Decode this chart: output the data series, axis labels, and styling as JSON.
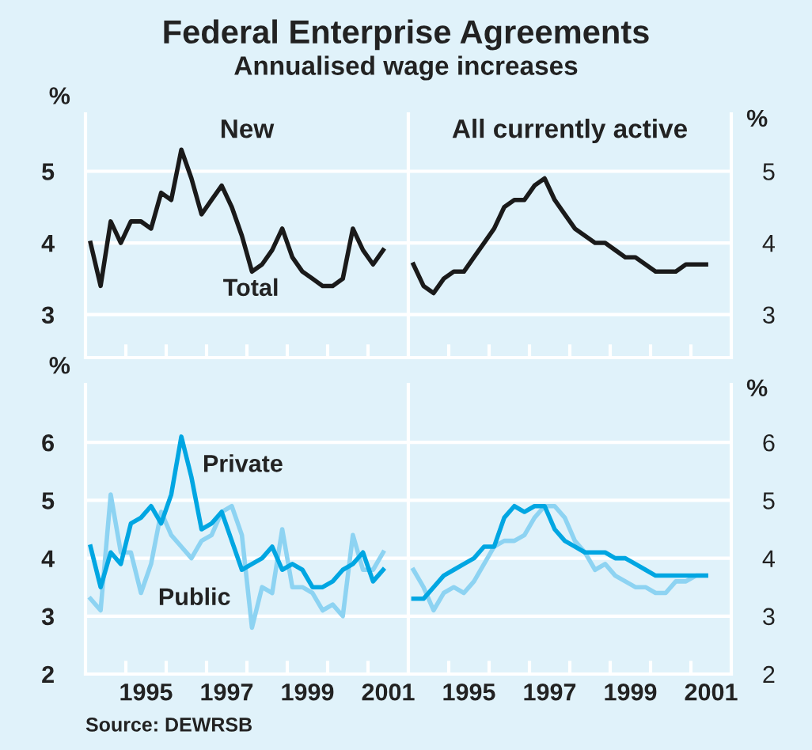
{
  "chart_data": [
    {
      "type": "line",
      "title": "Federal Enterprise Agreements",
      "subtitle": "Annualised wage increases",
      "annotations": [
        "New"
      ],
      "ylabel": "%",
      "grid": "y",
      "tick_labels": "y",
      "x": [
        1993.625,
        1993.875,
        1994.125,
        1994.375,
        1994.625,
        1994.875,
        1995.125,
        1995.375,
        1995.625,
        1995.875,
        1996.125,
        1996.375,
        1996.625,
        1996.875,
        1997.125,
        1997.375,
        1997.625,
        1997.875,
        1998.125,
        1998.375,
        1998.625,
        1998.875,
        1999.125,
        1999.375,
        1999.625,
        1999.875,
        2000.125,
        2000.375,
        2000.625,
        2000.875
      ],
      "xlim": [
        1993.5,
        2001.5
      ],
      "xticks": [
        {
          "value": 1994.5,
          "label": null
        },
        1995,
        {
          "value": 1995.5,
          "label": null
        },
        {
          "value": 1996.5,
          "label": null
        },
        1997,
        {
          "value": 1997.5,
          "label": null
        },
        {
          "value": 1998.5,
          "label": null
        },
        1999,
        {
          "value": 1999.5,
          "label": null
        },
        {
          "value": 2000.5,
          "label": null
        },
        2001
      ],
      "ylim": [
        2.4,
        5.8
      ],
      "yticks": [
        3,
        4,
        5
      ],
      "series": [
        {
          "name": "Total",
          "color": "#1a1a1a",
          "values": [
            4.0,
            3.4,
            4.3,
            4.0,
            4.3,
            4.3,
            4.2,
            4.7,
            4.6,
            5.3,
            4.9,
            4.4,
            4.6,
            4.8,
            4.5,
            4.1,
            3.6,
            3.7,
            3.9,
            4.2,
            3.8,
            3.6,
            3.5,
            3.4,
            3.4,
            3.5,
            4.2,
            3.9,
            3.7,
            3.9
          ]
        }
      ]
    },
    {
      "type": "line",
      "annotations": [
        "All currently active"
      ],
      "ylabel": "%",
      "grid": "y",
      "tick_labels": "y",
      "x": [
        1993.625,
        1993.875,
        1994.125,
        1994.375,
        1994.625,
        1994.875,
        1995.125,
        1995.375,
        1995.625,
        1995.875,
        1996.125,
        1996.375,
        1996.625,
        1996.875,
        1997.125,
        1997.375,
        1997.625,
        1997.875,
        1998.125,
        1998.375,
        1998.625,
        1998.875,
        1999.125,
        1999.375,
        1999.625,
        1999.875,
        2000.125,
        2000.375,
        2000.625,
        2000.875
      ],
      "xlim": [
        1993.5,
        2001.5
      ],
      "xticks": [
        {
          "value": 1994.5,
          "label": null
        },
        1995,
        {
          "value": 1995.5,
          "label": null
        },
        {
          "value": 1996.5,
          "label": null
        },
        1997,
        {
          "value": 1997.5,
          "label": null
        },
        {
          "value": 1998.5,
          "label": null
        },
        1999,
        {
          "value": 1999.5,
          "label": null
        },
        {
          "value": 2000.5,
          "label": null
        },
        2001
      ],
      "ylim": [
        2.4,
        5.8
      ],
      "yticks": [
        3,
        4,
        5
      ],
      "series": [
        {
          "color": "#1a1a1a",
          "values": [
            3.7,
            3.4,
            3.3,
            3.5,
            3.6,
            3.6,
            3.8,
            4.0,
            4.2,
            4.5,
            4.6,
            4.6,
            4.8,
            4.9,
            4.6,
            4.4,
            4.2,
            4.1,
            4.0,
            4.0,
            3.9,
            3.8,
            3.8,
            3.7,
            3.6,
            3.6,
            3.6,
            3.7,
            3.7,
            3.7
          ]
        }
      ]
    },
    {
      "type": "line",
      "annotations": [
        "Source: DEWRSB"
      ],
      "ylabel": "%",
      "grid": "y",
      "x": [
        1993.625,
        1993.875,
        1994.125,
        1994.375,
        1994.625,
        1994.875,
        1995.125,
        1995.375,
        1995.625,
        1995.875,
        1996.125,
        1996.375,
        1996.625,
        1996.875,
        1997.125,
        1997.375,
        1997.625,
        1997.875,
        1998.125,
        1998.375,
        1998.625,
        1998.875,
        1999.125,
        1999.375,
        1999.625,
        1999.875,
        2000.125,
        2000.375,
        2000.625,
        2000.875
      ],
      "xlim": [
        1993.5,
        2001.5
      ],
      "xticks": [
        {
          "value": 1994.5,
          "label": null
        },
        1995,
        {
          "value": 1995.5,
          "label": null
        },
        {
          "value": 1996.5,
          "label": null
        },
        1997,
        {
          "value": 1997.5,
          "label": null
        },
        {
          "value": 1998.5,
          "label": null
        },
        1999,
        {
          "value": 1999.5,
          "label": null
        },
        {
          "value": 2000.5,
          "label": null
        },
        2001
      ],
      "ylim": [
        2,
        7
      ],
      "yticks": [
        2,
        3,
        4,
        5,
        6
      ],
      "series": [
        {
          "name": "Public",
          "color": "#8dd3f2",
          "values": [
            3.3,
            3.1,
            5.1,
            4.1,
            4.1,
            3.4,
            3.9,
            4.8,
            4.4,
            4.2,
            4.0,
            4.3,
            4.4,
            4.8,
            4.9,
            4.4,
            2.8,
            3.5,
            3.4,
            4.5,
            3.5,
            3.5,
            3.4,
            3.1,
            3.2,
            3.0,
            4.4,
            3.8,
            3.8,
            4.1
          ]
        },
        {
          "name": "Private",
          "color": "#00a6e2",
          "values": [
            4.2,
            3.5,
            4.1,
            3.9,
            4.6,
            4.7,
            4.9,
            4.6,
            5.1,
            6.1,
            5.4,
            4.5,
            4.6,
            4.8,
            4.3,
            3.8,
            3.9,
            4.0,
            4.2,
            3.8,
            3.9,
            3.8,
            3.5,
            3.5,
            3.6,
            3.8,
            3.9,
            4.1,
            3.6,
            3.8
          ]
        }
      ]
    },
    {
      "type": "line",
      "ylabel": "%",
      "grid": "y",
      "x": [
        1993.625,
        1993.875,
        1994.125,
        1994.375,
        1994.625,
        1994.875,
        1995.125,
        1995.375,
        1995.625,
        1995.875,
        1996.125,
        1996.375,
        1996.625,
        1996.875,
        1997.125,
        1997.375,
        1997.625,
        1997.875,
        1998.125,
        1998.375,
        1998.625,
        1998.875,
        1999.125,
        1999.375,
        1999.625,
        1999.875,
        2000.125,
        2000.375,
        2000.625,
        2000.875
      ],
      "xlim": [
        1993.5,
        2001.5
      ],
      "xticks": [
        {
          "value": 1994.5,
          "label": null
        },
        1995,
        {
          "value": 1995.5,
          "label": null
        },
        {
          "value": 1996.5,
          "label": null
        },
        1997,
        {
          "value": 1997.5,
          "label": null
        },
        {
          "value": 1998.5,
          "label": null
        },
        1999,
        {
          "value": 1999.5,
          "label": null
        },
        {
          "value": 2000.5,
          "label": null
        },
        2001
      ],
      "ylim": [
        2,
        7
      ],
      "yticks": [
        2,
        3,
        4,
        5,
        6
      ],
      "series": [
        {
          "color": "#8dd3f2",
          "values": [
            3.8,
            3.5,
            3.1,
            3.4,
            3.5,
            3.4,
            3.6,
            3.9,
            4.2,
            4.3,
            4.3,
            4.4,
            4.7,
            4.9,
            4.9,
            4.7,
            4.3,
            4.1,
            3.8,
            3.9,
            3.7,
            3.6,
            3.5,
            3.5,
            3.4,
            3.4,
            3.6,
            3.6,
            3.7,
            3.7
          ]
        },
        {
          "color": "#00a6e2",
          "values": [
            3.3,
            3.3,
            3.5,
            3.7,
            3.8,
            3.9,
            4.0,
            4.2,
            4.2,
            4.7,
            4.9,
            4.8,
            4.9,
            4.9,
            4.5,
            4.3,
            4.2,
            4.1,
            4.1,
            4.1,
            4.0,
            4.0,
            3.9,
            3.8,
            3.7,
            3.7,
            3.7,
            3.7,
            3.7,
            3.7
          ]
        }
      ]
    }
  ]
}
